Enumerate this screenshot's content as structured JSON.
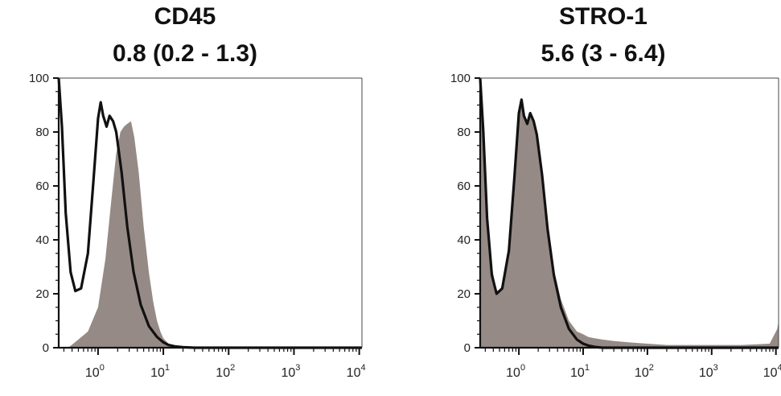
{
  "chart_data": [
    {
      "type": "area",
      "title": "CD45",
      "subtitle": "0.8 (0.2 - 1.3)",
      "xscale": "log",
      "xlim": [
        0.25,
        11000
      ],
      "ylim": [
        0,
        100
      ],
      "yticks": [
        0,
        20,
        40,
        60,
        80,
        100
      ],
      "xticks": [
        {
          "base": "10",
          "exp": "0"
        },
        {
          "base": "10",
          "exp": "1"
        },
        {
          "base": "10",
          "exp": "2"
        },
        {
          "base": "10",
          "exp": "3"
        },
        {
          "base": "10",
          "exp": "4"
        }
      ],
      "grid": false,
      "series": [
        {
          "style": "filled",
          "color": "#8b7d79",
          "x": [
            0.25,
            0.35,
            0.5,
            0.7,
            1.0,
            1.3,
            1.6,
            1.9,
            2.2,
            2.5,
            2.8,
            3.2,
            3.6,
            4.2,
            5,
            6,
            7,
            8,
            9,
            10,
            12,
            15,
            20,
            30,
            50,
            100,
            1000,
            11000
          ],
          "y": [
            0,
            0,
            3,
            6,
            15,
            33,
            55,
            72,
            80,
            82,
            83,
            84,
            78,
            65,
            45,
            28,
            17,
            10,
            6,
            3.5,
            1.5,
            0.5,
            0.2,
            0,
            0,
            0,
            0,
            0
          ]
        },
        {
          "style": "outline",
          "color": "#111111",
          "x": [
            0.25,
            0.28,
            0.32,
            0.38,
            0.45,
            0.55,
            0.7,
            0.85,
            1.0,
            1.1,
            1.2,
            1.35,
            1.5,
            1.7,
            1.9,
            2.3,
            2.8,
            3.5,
            4.5,
            6,
            8,
            10,
            12,
            15,
            20,
            30,
            50,
            100,
            1000,
            11000
          ],
          "y": [
            100,
            82,
            50,
            28,
            21,
            22,
            35,
            62,
            85,
            91,
            86,
            82,
            86,
            84,
            80,
            65,
            45,
            28,
            16,
            8,
            4,
            2,
            1,
            0.5,
            0.2,
            0,
            0,
            0,
            0,
            0
          ]
        }
      ]
    },
    {
      "type": "area",
      "title": "STRO-1",
      "subtitle": "5.6 (3 - 6.4)",
      "xscale": "log",
      "xlim": [
        0.25,
        11000
      ],
      "ylim": [
        0,
        100
      ],
      "yticks": [
        0,
        20,
        40,
        60,
        80,
        100
      ],
      "xticks": [
        {
          "base": "10",
          "exp": "0"
        },
        {
          "base": "10",
          "exp": "1"
        },
        {
          "base": "10",
          "exp": "2"
        },
        {
          "base": "10",
          "exp": "3"
        },
        {
          "base": "10",
          "exp": "4"
        }
      ],
      "grid": false,
      "series": [
        {
          "style": "filled",
          "color": "#8b7d79",
          "x": [
            0.25,
            0.28,
            0.32,
            0.38,
            0.45,
            0.55,
            0.7,
            0.85,
            1.0,
            1.1,
            1.2,
            1.35,
            1.5,
            1.7,
            1.9,
            2.3,
            2.8,
            3.5,
            4.5,
            6,
            8,
            10,
            12,
            15,
            20,
            30,
            50,
            100,
            200,
            500,
            1000,
            3000,
            8000,
            10500,
            11000
          ],
          "y": [
            100,
            82,
            50,
            30,
            21,
            22,
            35,
            62,
            86,
            90,
            87,
            83,
            86,
            84,
            80,
            66,
            46,
            29,
            18,
            10,
            6,
            5,
            4,
            3.5,
            3,
            2.5,
            2,
            1.5,
            1,
            1,
            1,
            1,
            1.5,
            7,
            10
          ]
        },
        {
          "style": "outline",
          "color": "#111111",
          "x": [
            0.25,
            0.28,
            0.32,
            0.38,
            0.45,
            0.55,
            0.7,
            0.85,
            1.0,
            1.1,
            1.2,
            1.35,
            1.5,
            1.7,
            1.9,
            2.3,
            2.8,
            3.5,
            4.5,
            6,
            8,
            10,
            12,
            15,
            20,
            30,
            50,
            100,
            1000,
            11000
          ],
          "y": [
            100,
            80,
            48,
            27,
            20,
            22,
            36,
            63,
            87,
            92,
            86,
            83,
            87,
            84,
            79,
            64,
            44,
            27,
            15,
            7,
            3,
            1.5,
            0.8,
            0.3,
            0,
            0,
            0,
            0,
            0,
            0
          ]
        }
      ]
    }
  ]
}
